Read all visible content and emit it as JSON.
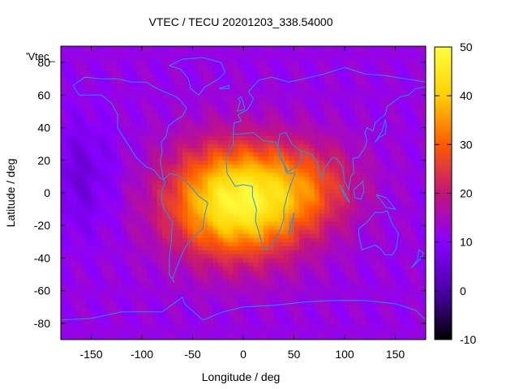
{
  "chart_data": {
    "type": "heatmap",
    "title": "VTEC / TECU 20201203_338.54000",
    "xlabel": "Longitude / deg",
    "ylabel": "Latitude / deg",
    "overlay_label": "'Vtec_",
    "xlim": [
      -180,
      180
    ],
    "ylim": [
      -90,
      90
    ],
    "xticks": [
      -150,
      -100,
      -50,
      0,
      50,
      100,
      150
    ],
    "yticks": [
      -80,
      -60,
      -40,
      -20,
      0,
      20,
      40,
      60,
      80
    ],
    "colorbar": {
      "range": [
        -10,
        50
      ],
      "ticks": [
        -10,
        0,
        10,
        20,
        30,
        40,
        50
      ],
      "palette": [
        "#000000",
        "#4b00a8",
        "#8a00ff",
        "#c4147a",
        "#ff5a00",
        "#ffd000",
        "#ffff40"
      ]
    },
    "peak": {
      "lon": -5,
      "lat": -5,
      "value": 48
    },
    "background_value": 12,
    "coastline_color": "#1e90ff"
  }
}
